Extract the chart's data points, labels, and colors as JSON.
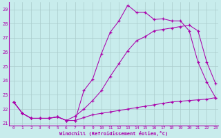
{
  "xlabel": "Windchill (Refroidissement éolien,°C)",
  "bg_color": "#c8ecec",
  "line_color": "#aa00aa",
  "grid_color": "#aacccc",
  "xlim": [
    -0.5,
    23.3
  ],
  "ylim": [
    20.85,
    29.5
  ],
  "yticks": [
    21,
    22,
    23,
    24,
    25,
    26,
    27,
    28,
    29
  ],
  "xticks": [
    0,
    1,
    2,
    3,
    4,
    5,
    6,
    7,
    8,
    9,
    10,
    11,
    12,
    13,
    14,
    15,
    16,
    17,
    18,
    19,
    20,
    21,
    22,
    23
  ],
  "line1_x": [
    0,
    1,
    2,
    3,
    4,
    5,
    6,
    7,
    8,
    9,
    10,
    11,
    12,
    13,
    14,
    15,
    16,
    17,
    18,
    19,
    20,
    21,
    22,
    23
  ],
  "line1_y": [
    22.5,
    21.7,
    21.35,
    21.35,
    21.35,
    21.45,
    21.2,
    21.2,
    23.3,
    24.1,
    25.9,
    27.4,
    28.2,
    29.3,
    28.8,
    28.8,
    28.3,
    28.35,
    28.2,
    28.2,
    27.5,
    25.3,
    23.9,
    22.8
  ],
  "line2_x": [
    0,
    1,
    2,
    3,
    4,
    5,
    6,
    7,
    8,
    9,
    10,
    11,
    12,
    13,
    14,
    15,
    16,
    17,
    18,
    19,
    20,
    21,
    22,
    23
  ],
  "line2_y": [
    22.5,
    21.7,
    21.35,
    21.35,
    21.35,
    21.45,
    21.2,
    21.5,
    22.0,
    22.6,
    23.3,
    24.3,
    25.2,
    26.1,
    26.8,
    27.1,
    27.5,
    27.6,
    27.7,
    27.8,
    27.9,
    27.5,
    25.3,
    23.8
  ],
  "line3_x": [
    0,
    1,
    2,
    3,
    4,
    5,
    6,
    7,
    8,
    9,
    10,
    11,
    12,
    13,
    14,
    15,
    16,
    17,
    18,
    19,
    20,
    21,
    22,
    23
  ],
  "line3_y": [
    22.5,
    21.7,
    21.35,
    21.35,
    21.35,
    21.45,
    21.2,
    21.2,
    21.4,
    21.6,
    21.7,
    21.8,
    21.9,
    22.0,
    22.1,
    22.2,
    22.3,
    22.4,
    22.5,
    22.55,
    22.6,
    22.65,
    22.7,
    22.8
  ]
}
